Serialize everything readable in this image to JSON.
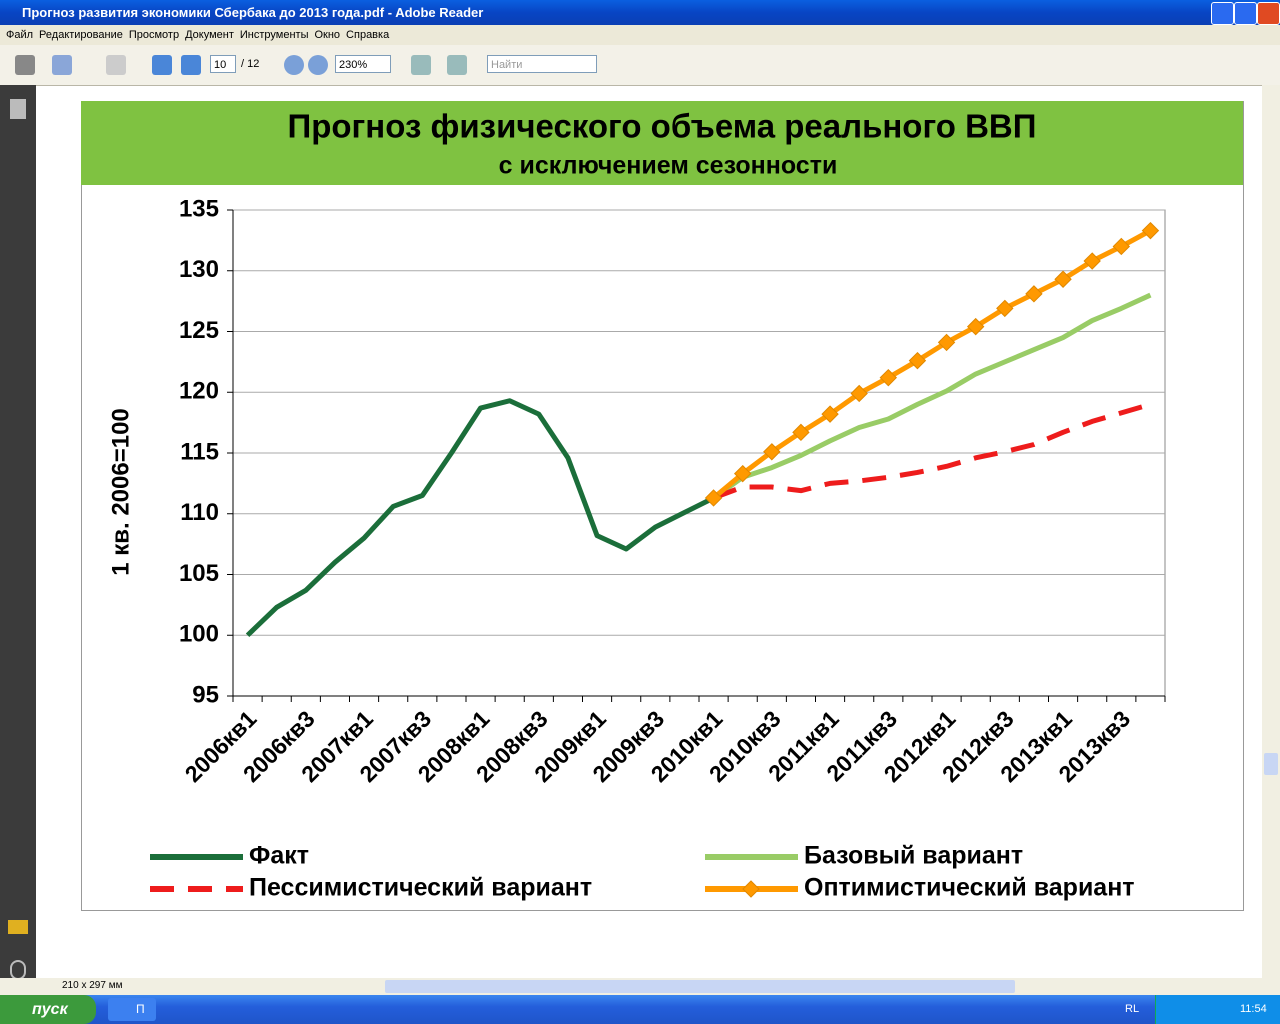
{
  "window": {
    "title": "Прогноз развития экономики Сбербака до 2013 года.pdf - Adobe Reader"
  },
  "menu": [
    "Файл",
    "Редактирование",
    "Просмотр",
    "Документ",
    "Инструменты",
    "Окно",
    "Справка"
  ],
  "toolbar": {
    "page": "10",
    "pages": "/ 12",
    "zoom": "230%",
    "search": "Найти"
  },
  "status": {
    "size": "210 x 297 мм"
  },
  "taskbar": {
    "start": "пуск",
    "task": "П",
    "lang": "RL",
    "clock": "11:54"
  },
  "chart_data": {
    "type": "line",
    "title": "Прогноз физического объема реального ВВП",
    "subtitle": "с исключением сезонности",
    "y_label": "1 кв. 2006=100",
    "categories": [
      "2006кв1",
      null,
      "2006кв3",
      null,
      "2007кв1",
      null,
      "2007кв3",
      null,
      "2008кв1",
      null,
      "2008кв3",
      null,
      "2009кв1",
      null,
      "2009кв3",
      null,
      "2010кв1",
      null,
      "2010кв3",
      null,
      "2011кв1",
      null,
      "2011кв3",
      null,
      "2012кв1",
      null,
      "2012кв3",
      null,
      "2013кв1",
      null,
      "2013кв3",
      null
    ],
    "series": [
      {
        "name": "Факт",
        "color": "#1b6e3a",
        "style": "solid",
        "values": [
          100,
          102.3,
          103.7,
          106.0,
          108.0,
          110.6,
          111.5,
          115.0,
          118.7,
          119.3,
          118.2,
          114.6,
          108.2,
          107.1,
          108.9,
          110.1,
          111.3,
          null,
          null,
          null,
          null,
          null,
          null,
          null,
          null,
          null,
          null,
          null,
          null,
          null,
          null,
          null
        ]
      },
      {
        "name": "Базовый вариант",
        "color": "#99cc66",
        "style": "solid",
        "values": [
          null,
          null,
          null,
          null,
          null,
          null,
          null,
          null,
          null,
          null,
          null,
          null,
          null,
          null,
          null,
          null,
          111.3,
          113.0,
          113.8,
          114.8,
          116.0,
          117.1,
          117.8,
          119.0,
          120.1,
          121.5,
          122.5,
          123.5,
          124.5,
          125.9,
          126.9,
          128.0
        ]
      },
      {
        "name": "Пессимистический вариант",
        "color": "#ee1c1c",
        "style": "dashed",
        "values": [
          null,
          null,
          null,
          null,
          null,
          null,
          null,
          null,
          null,
          null,
          null,
          null,
          null,
          null,
          null,
          null,
          111.3,
          112.2,
          112.2,
          111.9,
          112.5,
          112.7,
          113.0,
          113.4,
          113.9,
          114.6,
          115.1,
          115.7,
          116.7,
          117.6,
          118.3,
          119.0
        ]
      },
      {
        "name": "Оптимистический вариант",
        "color": "#ff9900",
        "style": "markers",
        "values": [
          null,
          null,
          null,
          null,
          null,
          null,
          null,
          null,
          null,
          null,
          null,
          null,
          null,
          null,
          null,
          null,
          111.3,
          113.3,
          115.1,
          116.7,
          118.2,
          119.9,
          121.2,
          122.6,
          124.1,
          125.4,
          126.9,
          128.1,
          129.3,
          130.8,
          132.0,
          133.3
        ]
      }
    ],
    "ylim": [
      95,
      135
    ],
    "yticks": [
      95,
      100,
      105,
      110,
      115,
      120,
      125,
      130,
      135
    ],
    "grid": true
  }
}
